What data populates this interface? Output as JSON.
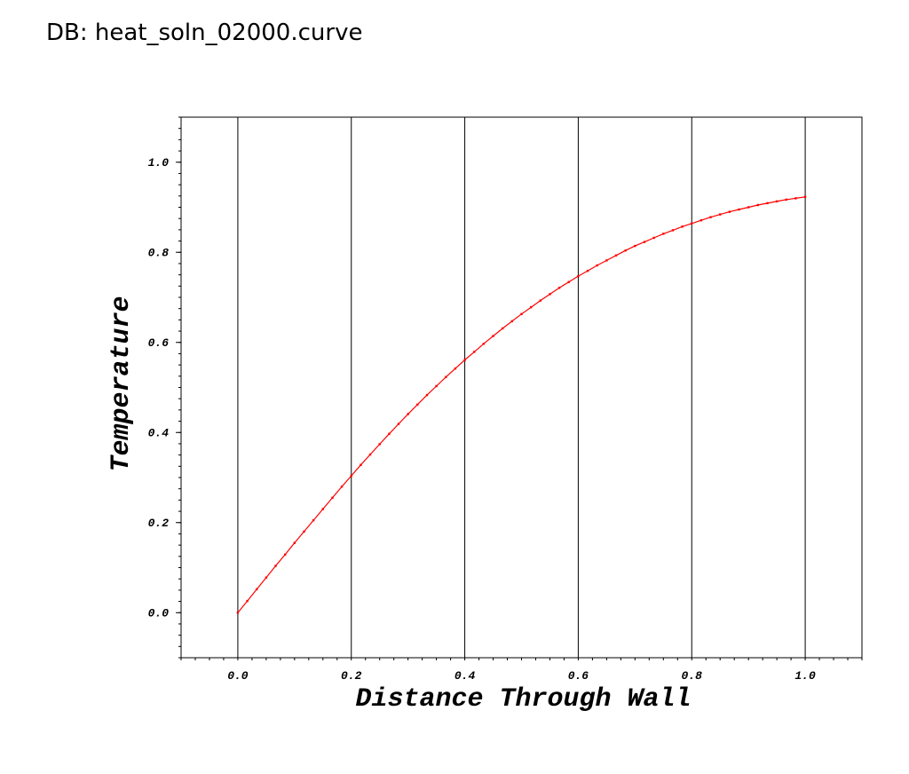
{
  "header": {
    "db_label": "DB: heat_soln_02000.curve"
  },
  "colors": {
    "curve": "#ff0000",
    "axis": "#000000",
    "grid": "#000000"
  },
  "chart_data": {
    "type": "line",
    "title": "",
    "xlabel": "Distance Through Wall",
    "ylabel": "Temperature",
    "xlim": [
      -0.1,
      1.1
    ],
    "ylim": [
      -0.1,
      1.1
    ],
    "xticks": [
      "0.0",
      "0.2",
      "0.4",
      "0.6",
      "0.8",
      "1.0"
    ],
    "yticks": [
      "0.0",
      "0.2",
      "0.4",
      "0.6",
      "0.8",
      "1.0"
    ],
    "grid": "vertical",
    "legend": "none",
    "series": [
      {
        "x": [
          0.0,
          0.0167,
          0.0333,
          0.05,
          0.0667,
          0.0833,
          0.1,
          0.1167,
          0.1333,
          0.15,
          0.1667,
          0.1833,
          0.2,
          0.2167,
          0.2333,
          0.25,
          0.2667,
          0.2833,
          0.3,
          0.3167,
          0.3333,
          0.35,
          0.3667,
          0.3833,
          0.4,
          0.4167,
          0.4333,
          0.45,
          0.4667,
          0.4833,
          0.5,
          0.5167,
          0.5333,
          0.55,
          0.5667,
          0.5833,
          0.6,
          0.6167,
          0.6333,
          0.65,
          0.6667,
          0.6833,
          0.7,
          0.7167,
          0.7333,
          0.75,
          0.7667,
          0.7833,
          0.8,
          0.8167,
          0.8333,
          0.85,
          0.8667,
          0.8833,
          0.9,
          0.9167,
          0.9333,
          0.95,
          0.9667,
          0.9833,
          1.0
        ],
        "y": [
          0.0,
          0.026,
          0.052,
          0.078,
          0.104,
          0.129,
          0.155,
          0.18,
          0.205,
          0.23,
          0.255,
          0.28,
          0.304,
          0.328,
          0.351,
          0.374,
          0.397,
          0.419,
          0.441,
          0.462,
          0.483,
          0.503,
          0.523,
          0.542,
          0.561,
          0.579,
          0.597,
          0.614,
          0.631,
          0.647,
          0.663,
          0.678,
          0.693,
          0.707,
          0.721,
          0.734,
          0.747,
          0.759,
          0.771,
          0.782,
          0.793,
          0.804,
          0.814,
          0.823,
          0.832,
          0.841,
          0.849,
          0.857,
          0.864,
          0.871,
          0.878,
          0.884,
          0.89,
          0.895,
          0.9,
          0.905,
          0.909,
          0.913,
          0.917,
          0.92,
          0.923
        ]
      }
    ]
  }
}
